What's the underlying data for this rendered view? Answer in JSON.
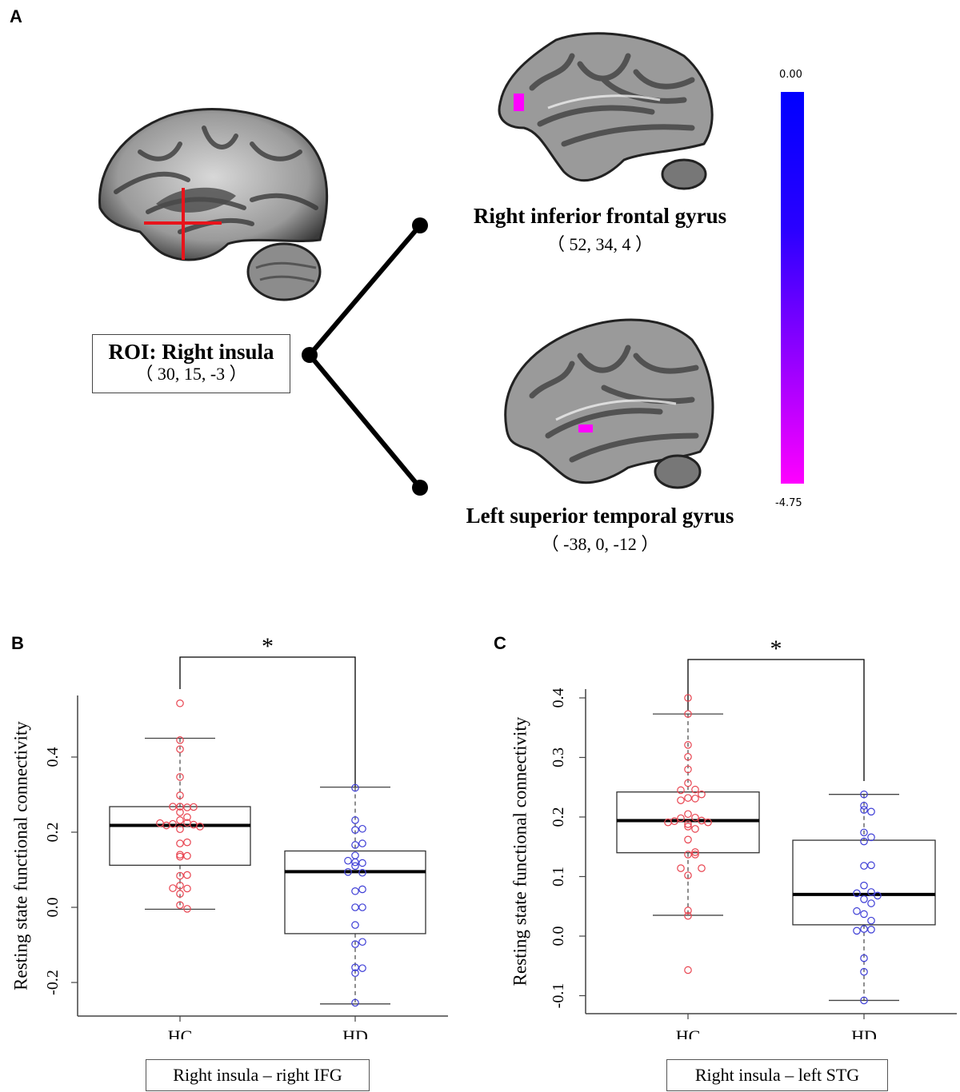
{
  "panel_a": {
    "letter": "A",
    "roi": {
      "title": "ROI: Right insula",
      "coords": "（ 30, 15, -3 ）"
    },
    "regions": [
      {
        "title": "Right inferior frontal gyrus",
        "coords": "（ 52, 34, 4 ）"
      },
      {
        "title": "Left superior temporal gyrus",
        "coords": "（ -38, 0, -12 ）"
      }
    ],
    "colorbar": {
      "max_label": "0.00",
      "min_label": "-4.75",
      "top_color": "#0000ff",
      "bottom_color": "#ff00ff"
    },
    "crosshair_color": "#e8141b",
    "cluster_color": "#ff00ff"
  },
  "chart_data": [
    {
      "type": "box",
      "panel_letter": "B",
      "title": "",
      "caption": "Right insula – right IFG",
      "xlabel": "",
      "ylabel": "Resting state functional connectivity",
      "categories": [
        "HC",
        "HD"
      ],
      "yticks": [
        "-0.2",
        "0.0",
        "0.2",
        "0.4"
      ],
      "ytick_values": [
        -0.2,
        0.0,
        0.2,
        0.4
      ],
      "ylim": [
        -0.29,
        0.57
      ],
      "significance": "*",
      "series": [
        {
          "name": "HC",
          "color": "#e8434f",
          "whisker_low": -0.005,
          "q1": 0.112,
          "median": 0.218,
          "q3": 0.268,
          "whisker_high": 0.45,
          "points": [
            0.543,
            0.445,
            0.421,
            0.347,
            0.298,
            0.268,
            0.266,
            0.268,
            0.267,
            0.253,
            0.24,
            0.232,
            0.225,
            0.222,
            0.22,
            0.218,
            0.215,
            0.224,
            0.208,
            0.17,
            0.173,
            0.135,
            0.14,
            0.137,
            0.084,
            0.086,
            0.058,
            0.05,
            0.051,
            0.036,
            0.006,
            -0.004
          ]
        },
        {
          "name": "HD",
          "color": "#3d3dd6",
          "whisker_low": -0.257,
          "q1": -0.07,
          "median": 0.095,
          "q3": 0.15,
          "whisker_high": 0.32,
          "points": [
            0.318,
            0.232,
            0.206,
            0.209,
            0.166,
            0.17,
            0.138,
            0.12,
            0.118,
            0.124,
            0.11,
            0.092,
            0.094,
            0.043,
            0.048,
            0.0,
            0.0,
            -0.047,
            -0.098,
            -0.092,
            -0.16,
            -0.162,
            -0.175,
            -0.254
          ]
        }
      ]
    },
    {
      "type": "box",
      "panel_letter": "C",
      "title": "",
      "caption": "Right insula – left STG",
      "xlabel": "",
      "ylabel": "Resting state functional connectivity",
      "categories": [
        "HC",
        "HD"
      ],
      "yticks": [
        "-0.1",
        "0.0",
        "0.1",
        "0.2",
        "0.3",
        "0.4"
      ],
      "ytick_values": [
        -0.1,
        0.0,
        0.1,
        0.2,
        0.3,
        0.4
      ],
      "ylim": [
        -0.13,
        0.42
      ],
      "significance": "*",
      "series": [
        {
          "name": "HC",
          "color": "#e8434f",
          "whisker_low": 0.035,
          "q1": 0.14,
          "median": 0.194,
          "q3": 0.242,
          "whisker_high": 0.373,
          "points": [
            0.4,
            0.373,
            0.321,
            0.301,
            0.28,
            0.257,
            0.246,
            0.245,
            0.238,
            0.232,
            0.231,
            0.228,
            0.205,
            0.199,
            0.198,
            0.194,
            0.193,
            0.191,
            0.191,
            0.188,
            0.184,
            0.18,
            0.162,
            0.141,
            0.137,
            0.137,
            0.114,
            0.114,
            0.102,
            0.043,
            0.034,
            -0.057
          ]
        },
        {
          "name": "HD",
          "color": "#3d3dd6",
          "whisker_low": -0.108,
          "q1": 0.019,
          "median": 0.07,
          "q3": 0.161,
          "whisker_high": 0.238,
          "points": [
            0.238,
            0.219,
            0.212,
            0.209,
            0.174,
            0.166,
            0.159,
            0.118,
            0.119,
            0.085,
            0.074,
            0.072,
            0.068,
            0.062,
            0.055,
            0.042,
            0.037,
            0.026,
            0.012,
            0.011,
            0.009,
            -0.037,
            -0.06,
            -0.108
          ]
        }
      ]
    }
  ]
}
